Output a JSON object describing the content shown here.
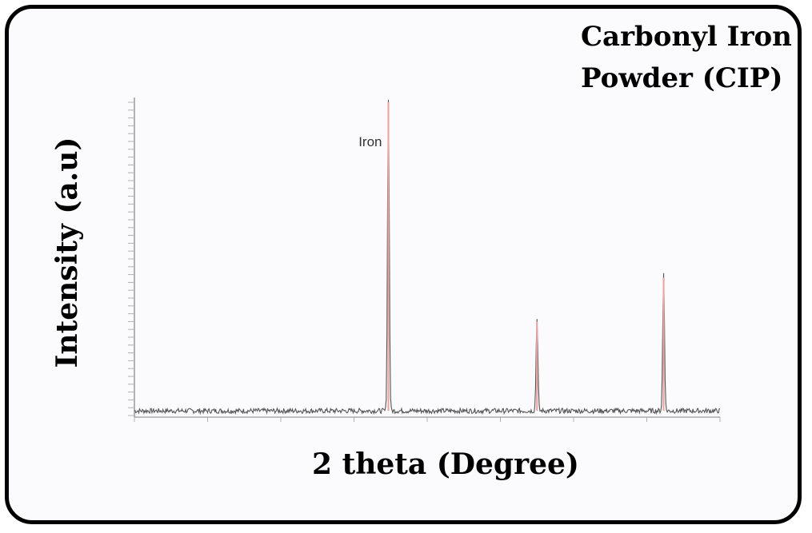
{
  "chart_data": {
    "type": "line",
    "title_lines": [
      "Carbonyl Iron",
      "Powder (CIP)"
    ],
    "xlabel": "2 theta (Degree)",
    "ylabel": "Intensity (a.u)",
    "xlim": [
      10,
      90
    ],
    "ylim": [
      0,
      100
    ],
    "grid": false,
    "series": [
      {
        "color": "#e8a8a8",
        "peaks": [
          {
            "x": 44.7,
            "y": 100
          },
          {
            "x": 65.0,
            "y": 30
          },
          {
            "x": 82.3,
            "y": 44
          }
        ],
        "baseline": 1.5
      }
    ],
    "annotations": [
      {
        "text": "Iron",
        "x": 44.7,
        "y": 86
      }
    ]
  }
}
